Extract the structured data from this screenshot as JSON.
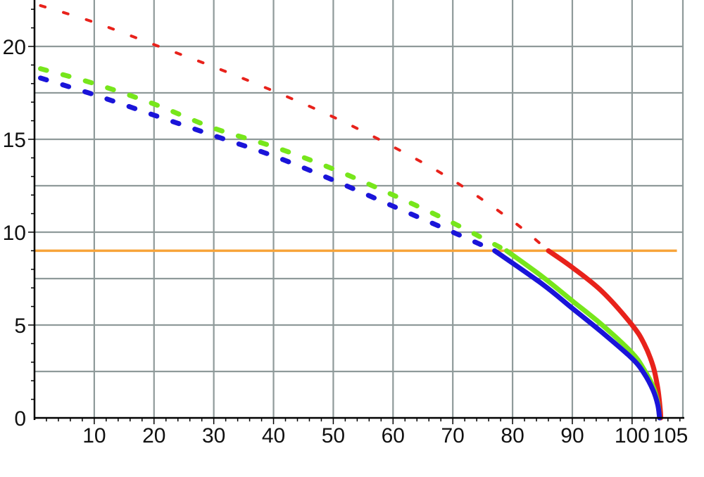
{
  "chart_data": {
    "type": "line",
    "title": "",
    "xlabel": "",
    "ylabel": "",
    "xlim": [
      0,
      108.5
    ],
    "ylim": [
      0,
      22.5
    ],
    "grid": true,
    "x_ticks": [
      10,
      20,
      30,
      40,
      50,
      60,
      70,
      80,
      90,
      100,
      105
    ],
    "x_tick_labels": [
      "10",
      "20",
      "30",
      "40",
      "50",
      "60",
      "70",
      "80",
      "90",
      "100",
      "105"
    ],
    "y_ticks": [
      0,
      5,
      10,
      15,
      20
    ],
    "y_tick_labels": [
      "0",
      "5",
      "10",
      "15",
      "20"
    ],
    "series": [
      {
        "color": "#e8221b",
        "dashed": [
          [
            1,
            22.2
          ],
          [
            10,
            21.3
          ],
          [
            20,
            20.1
          ],
          [
            30,
            18.9
          ],
          [
            40,
            17.6
          ],
          [
            50,
            16.2
          ],
          [
            60,
            14.6
          ],
          [
            70,
            12.8
          ],
          [
            80,
            10.6
          ],
          [
            86,
            9.0
          ]
        ],
        "solid": [
          [
            86,
            9.0
          ],
          [
            90,
            8.1
          ],
          [
            95,
            6.8
          ],
          [
            100,
            5.0
          ],
          [
            102,
            4.0
          ],
          [
            103.5,
            2.8
          ],
          [
            104.3,
            1.6
          ],
          [
            104.7,
            0.5
          ],
          [
            104.8,
            0
          ]
        ]
      },
      {
        "color": "#77e61b",
        "dashed": [
          [
            1,
            18.8
          ],
          [
            10,
            18.0
          ],
          [
            20,
            16.9
          ],
          [
            30,
            15.6
          ],
          [
            40,
            14.6
          ],
          [
            50,
            13.4
          ],
          [
            60,
            12.0
          ],
          [
            70,
            10.5
          ],
          [
            79,
            9.0
          ]
        ],
        "solid": [
          [
            79,
            9.0
          ],
          [
            85,
            7.6
          ],
          [
            90,
            6.3
          ],
          [
            95,
            5.0
          ],
          [
            100,
            3.5
          ],
          [
            102,
            2.6
          ],
          [
            103.5,
            1.7
          ],
          [
            104.3,
            0.8
          ],
          [
            104.6,
            0
          ]
        ]
      },
      {
        "color": "#1a14d9",
        "dashed": [
          [
            1,
            18.3
          ],
          [
            10,
            17.4
          ],
          [
            20,
            16.3
          ],
          [
            30,
            15.2
          ],
          [
            40,
            14.1
          ],
          [
            50,
            12.8
          ],
          [
            60,
            11.4
          ],
          [
            70,
            10.0
          ],
          [
            77,
            9.0
          ]
        ],
        "solid": [
          [
            77,
            9.0
          ],
          [
            85,
            7.2
          ],
          [
            90,
            5.9
          ],
          [
            95,
            4.6
          ],
          [
            100,
            3.2
          ],
          [
            102,
            2.4
          ],
          [
            103.5,
            1.5
          ],
          [
            104.3,
            0.7
          ],
          [
            104.6,
            0
          ]
        ]
      }
    ],
    "reference_line": {
      "y": 9,
      "x_range": [
        0,
        107.5
      ],
      "color": "#f7a43a"
    }
  }
}
